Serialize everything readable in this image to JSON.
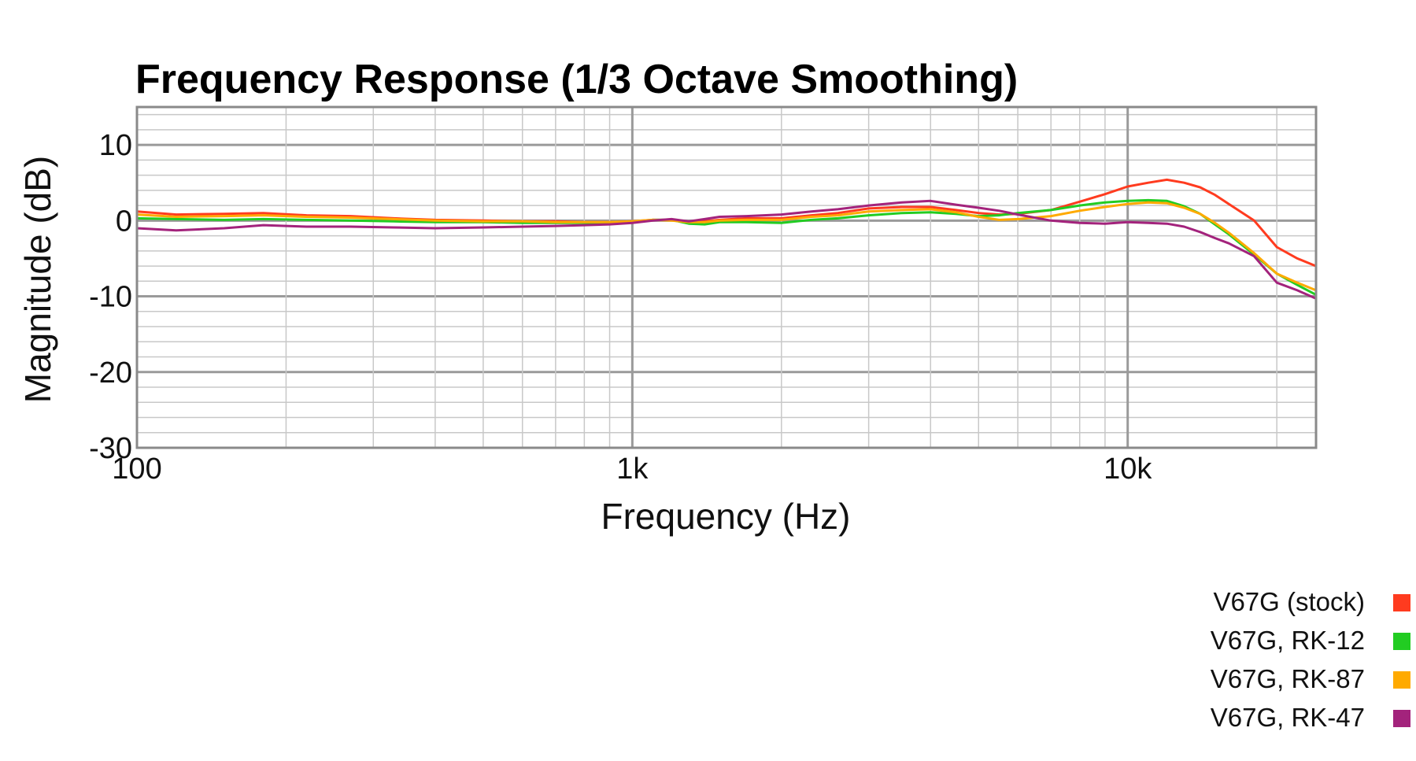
{
  "chart_data": {
    "type": "line",
    "title": "Frequency Response (1/3 Octave Smoothing)",
    "xlabel": "Frequency (Hz)",
    "ylabel": "Magnitude (dB)",
    "x_scale": "log",
    "xlim": [
      100,
      24000
    ],
    "ylim": [
      -30,
      15
    ],
    "x_ticks": [
      {
        "value": 100,
        "label": "100"
      },
      {
        "value": 1000,
        "label": "1k"
      },
      {
        "value": 10000,
        "label": "10k"
      }
    ],
    "y_ticks": [
      {
        "value": 10,
        "label": "10"
      },
      {
        "value": 0,
        "label": "0"
      },
      {
        "value": -10,
        "label": "-10"
      },
      {
        "value": -20,
        "label": "-20"
      },
      {
        "value": -30,
        "label": "-30"
      }
    ],
    "grid": true,
    "legend_position": "bottom-right",
    "series": [
      {
        "name": "V67G (stock)",
        "color": "#ff3b1f",
        "x": [
          100,
          120,
          150,
          180,
          220,
          270,
          330,
          400,
          500,
          600,
          700,
          800,
          900,
          1000,
          1100,
          1200,
          1300,
          1400,
          1500,
          1700,
          2000,
          2300,
          2600,
          3000,
          3500,
          4000,
          4500,
          5000,
          5500,
          6000,
          7000,
          8000,
          9000,
          10000,
          11000,
          12000,
          13000,
          14000,
          15000,
          16000,
          18000,
          20000,
          22000,
          24000
        ],
        "y": [
          1.2,
          0.8,
          0.9,
          1.0,
          0.7,
          0.6,
          0.3,
          0.1,
          0.0,
          -0.1,
          -0.1,
          -0.2,
          -0.2,
          -0.1,
          0.1,
          0.1,
          -0.2,
          -0.1,
          0.1,
          0.3,
          0.3,
          0.7,
          1.0,
          1.6,
          1.8,
          1.8,
          1.4,
          1.0,
          0.8,
          0.9,
          1.4,
          2.5,
          3.5,
          4.5,
          5.0,
          5.4,
          5.0,
          4.4,
          3.4,
          2.2,
          0.0,
          -3.5,
          -5.0,
          -6.0
        ]
      },
      {
        "name": "V67G, RK-12",
        "color": "#22cc22",
        "x": [
          100,
          120,
          150,
          180,
          220,
          270,
          330,
          400,
          500,
          600,
          700,
          800,
          900,
          1000,
          1100,
          1200,
          1300,
          1400,
          1500,
          1700,
          2000,
          2300,
          2600,
          3000,
          3500,
          4000,
          4500,
          5000,
          5500,
          6000,
          7000,
          8000,
          9000,
          10000,
          11000,
          12000,
          13000,
          14000,
          15000,
          16000,
          18000,
          20000,
          22000,
          24000
        ],
        "y": [
          0.3,
          0.2,
          0.1,
          0.2,
          0.1,
          0.0,
          -0.1,
          -0.2,
          -0.2,
          -0.3,
          -0.3,
          -0.3,
          -0.3,
          -0.2,
          0.1,
          0.1,
          -0.4,
          -0.5,
          -0.2,
          -0.2,
          -0.3,
          0.1,
          0.3,
          0.7,
          1.0,
          1.1,
          0.9,
          0.6,
          0.7,
          1.0,
          1.4,
          2.0,
          2.4,
          2.6,
          2.7,
          2.6,
          1.9,
          0.9,
          -0.5,
          -1.8,
          -4.5,
          -7.0,
          -8.5,
          -9.8
        ]
      },
      {
        "name": "V67G, RK-87",
        "color": "#ffaa00",
        "x": [
          100,
          120,
          150,
          180,
          220,
          270,
          330,
          400,
          500,
          600,
          700,
          800,
          900,
          1000,
          1100,
          1200,
          1300,
          1400,
          1500,
          1700,
          2000,
          2300,
          2600,
          3000,
          3500,
          4000,
          4500,
          5000,
          5500,
          6000,
          7000,
          8000,
          9000,
          10000,
          11000,
          12000,
          13000,
          14000,
          15000,
          16000,
          18000,
          20000,
          22000,
          24000
        ],
        "y": [
          0.8,
          0.5,
          0.6,
          0.7,
          0.5,
          0.4,
          0.2,
          0.0,
          -0.1,
          -0.1,
          -0.2,
          -0.2,
          -0.2,
          -0.1,
          0.1,
          0.0,
          -0.2,
          -0.2,
          0.0,
          0.1,
          0.1,
          0.5,
          0.7,
          1.2,
          1.4,
          1.5,
          1.1,
          0.5,
          0.1,
          0.2,
          0.6,
          1.3,
          1.8,
          2.2,
          2.4,
          2.3,
          1.7,
          0.9,
          -0.3,
          -1.6,
          -4.3,
          -7.0,
          -8.2,
          -9.2
        ]
      },
      {
        "name": "V67G, RK-47",
        "color": "#a3237c",
        "x": [
          100,
          120,
          150,
          180,
          220,
          270,
          330,
          400,
          500,
          600,
          700,
          800,
          900,
          1000,
          1100,
          1200,
          1300,
          1400,
          1500,
          1700,
          2000,
          2300,
          2600,
          3000,
          3500,
          4000,
          4500,
          5000,
          5500,
          6000,
          7000,
          8000,
          9000,
          10000,
          11000,
          12000,
          13000,
          14000,
          15000,
          16000,
          18000,
          20000,
          22000,
          24000
        ],
        "y": [
          -1.0,
          -1.3,
          -1.0,
          -0.6,
          -0.8,
          -0.8,
          -0.9,
          -1.0,
          -0.9,
          -0.8,
          -0.7,
          -0.6,
          -0.5,
          -0.3,
          0.0,
          0.2,
          -0.1,
          0.2,
          0.5,
          0.6,
          0.8,
          1.2,
          1.5,
          2.0,
          2.4,
          2.6,
          2.1,
          1.7,
          1.3,
          0.8,
          0.0,
          -0.3,
          -0.4,
          -0.2,
          -0.3,
          -0.4,
          -0.8,
          -1.5,
          -2.3,
          -3.0,
          -4.7,
          -8.2,
          -9.2,
          -10.3
        ]
      }
    ]
  }
}
